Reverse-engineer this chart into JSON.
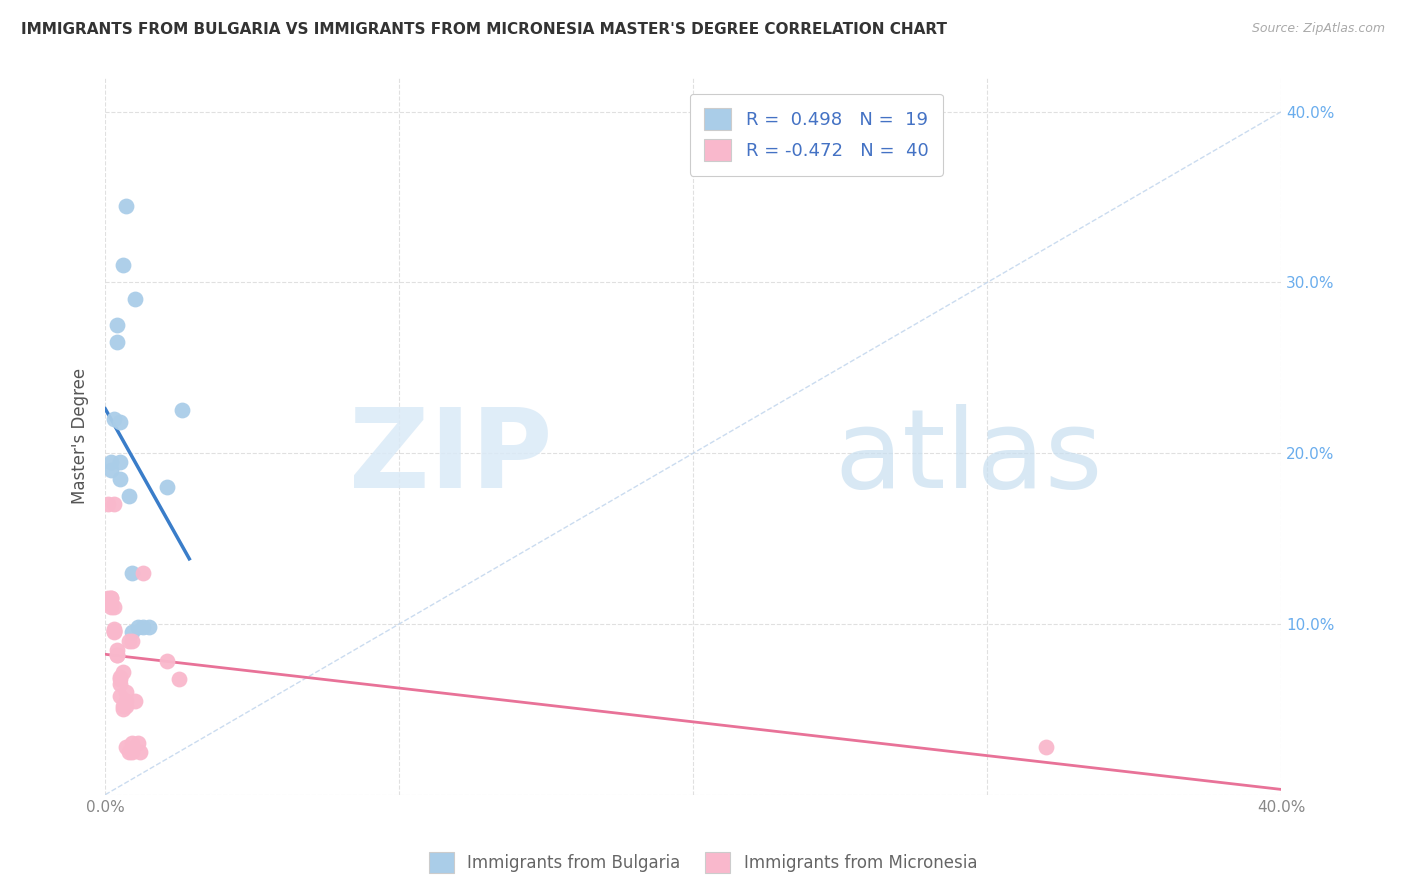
{
  "title": "IMMIGRANTS FROM BULGARIA VS IMMIGRANTS FROM MICRONESIA MASTER'S DEGREE CORRELATION CHART",
  "source": "Source: ZipAtlas.com",
  "ylabel": "Master's Degree",
  "xlim": [
    0.0,
    0.4
  ],
  "ylim": [
    0.0,
    0.42
  ],
  "bulgaria_scatter_color": "#aacde8",
  "micronesia_scatter_color": "#f9b8cc",
  "bulgaria_line_color": "#3a7dc9",
  "micronesia_line_color": "#e87298",
  "diag_line_color": "#c5d8ee",
  "legend_R_bulgaria": "0.498",
  "legend_N_bulgaria": "19",
  "legend_R_micronesia": "-0.472",
  "legend_N_micronesia": "40",
  "bulgaria_x": [
    0.002,
    0.002,
    0.003,
    0.004,
    0.004,
    0.005,
    0.005,
    0.005,
    0.006,
    0.007,
    0.008,
    0.009,
    0.009,
    0.01,
    0.011,
    0.013,
    0.015,
    0.021,
    0.026
  ],
  "bulgaria_y": [
    0.19,
    0.195,
    0.22,
    0.275,
    0.265,
    0.195,
    0.185,
    0.218,
    0.31,
    0.345,
    0.175,
    0.095,
    0.13,
    0.29,
    0.098,
    0.098,
    0.098,
    0.18,
    0.225
  ],
  "micronesia_x": [
    0.001,
    0.001,
    0.001,
    0.002,
    0.002,
    0.002,
    0.002,
    0.002,
    0.003,
    0.003,
    0.003,
    0.003,
    0.003,
    0.003,
    0.004,
    0.004,
    0.004,
    0.005,
    0.005,
    0.005,
    0.005,
    0.006,
    0.006,
    0.006,
    0.007,
    0.007,
    0.007,
    0.007,
    0.008,
    0.008,
    0.009,
    0.009,
    0.009,
    0.01,
    0.011,
    0.012,
    0.013,
    0.021,
    0.025,
    0.32
  ],
  "micronesia_y": [
    0.17,
    0.115,
    0.112,
    0.115,
    0.115,
    0.112,
    0.112,
    0.11,
    0.096,
    0.097,
    0.096,
    0.095,
    0.11,
    0.17,
    0.082,
    0.082,
    0.085,
    0.065,
    0.068,
    0.069,
    0.058,
    0.052,
    0.072,
    0.05,
    0.06,
    0.055,
    0.052,
    0.028,
    0.09,
    0.025,
    0.025,
    0.09,
    0.03,
    0.055,
    0.03,
    0.025,
    0.13,
    0.078,
    0.068,
    0.028
  ],
  "grid_color": "#e0e0e0",
  "right_tick_color": "#6aaded",
  "title_fontsize": 11,
  "axis_label_fontsize": 11,
  "legend_fontsize": 13
}
